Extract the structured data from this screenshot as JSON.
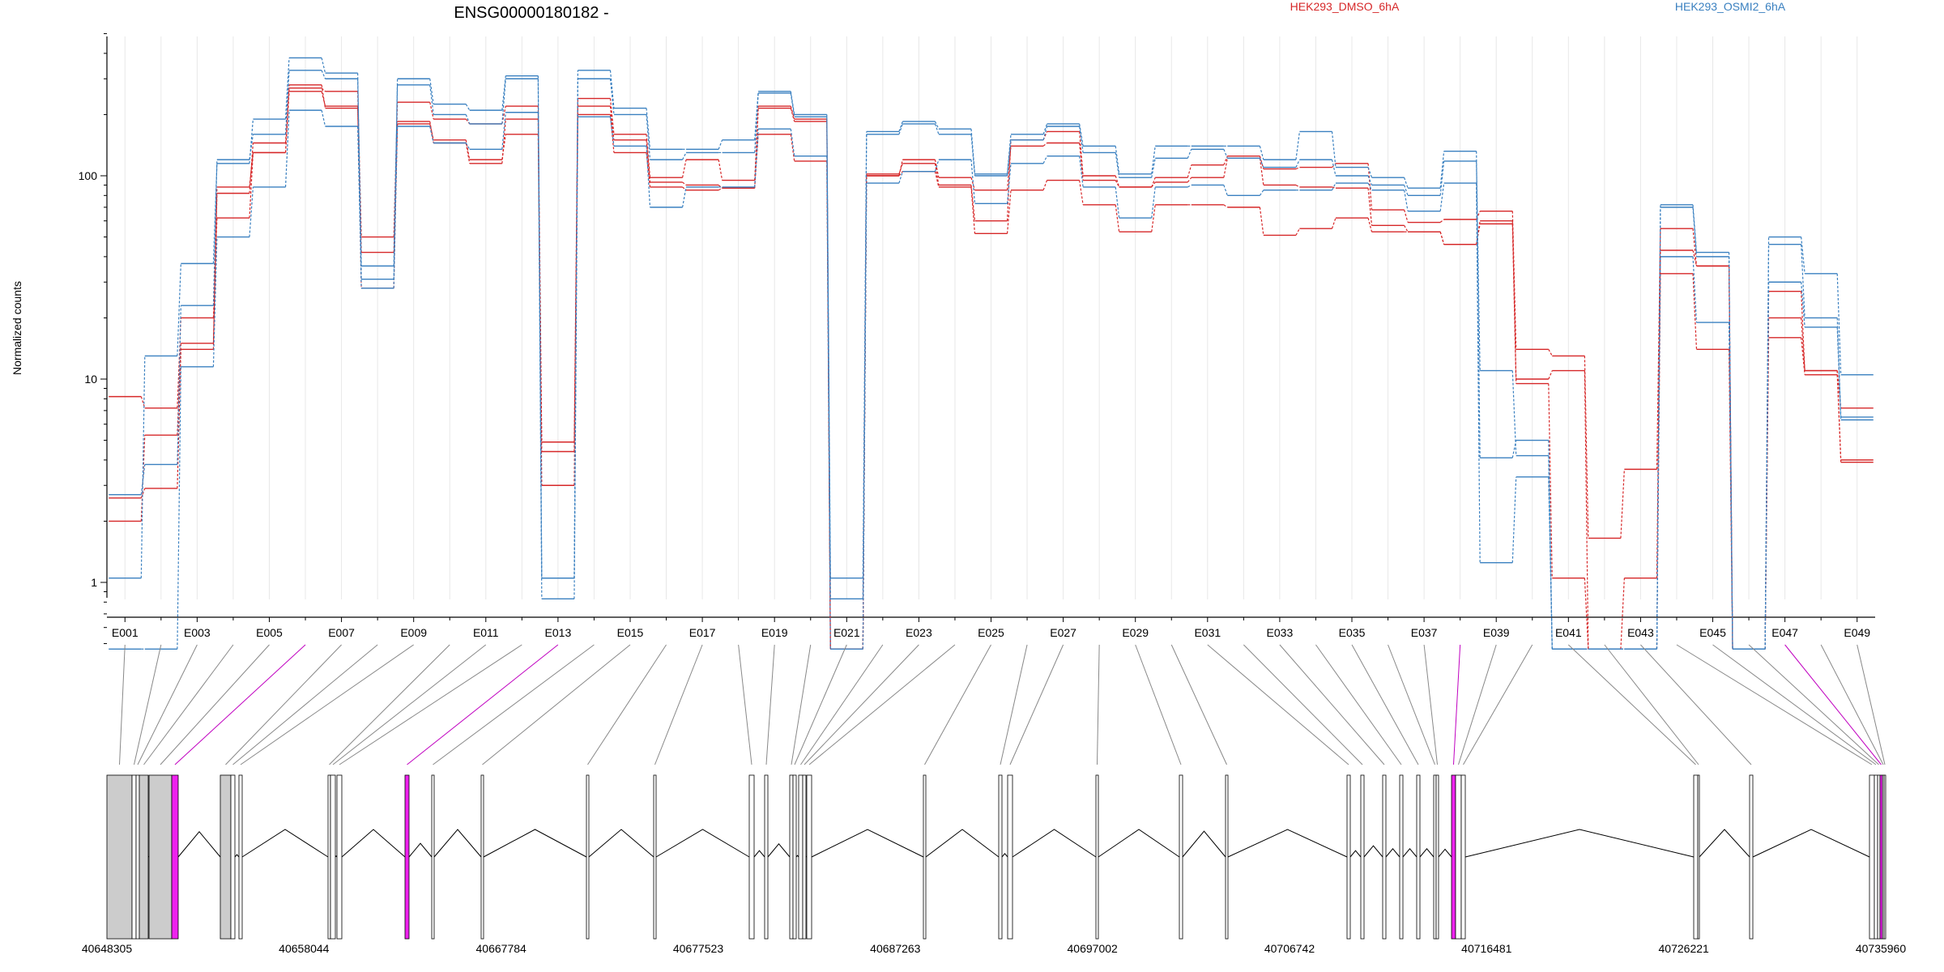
{
  "chart_data": {
    "type": "line",
    "title": "ENSG00000180182 -",
    "ylabel": "Normalized counts",
    "yscale": "log",
    "ylim": [
      0.45,
      530
    ],
    "yticks": [
      {
        "value": 1,
        "label": "1"
      },
      {
        "value": 10,
        "label": "10"
      },
      {
        "value": 100,
        "label": "100"
      }
    ],
    "grid": true,
    "legend": [
      {
        "name": "HEK293_DMSO_6hA",
        "color": "#d62728"
      },
      {
        "name": "HEK293_OSMI2_6hA",
        "color": "#3a80c0"
      }
    ],
    "exon_ids": [
      "E001",
      "E002",
      "E003",
      "E004",
      "E005",
      "E006",
      "E007",
      "E008",
      "E009",
      "E010",
      "E011",
      "E012",
      "E013",
      "E014",
      "E015",
      "E016",
      "E017",
      "E018",
      "E019",
      "E020",
      "E021",
      "E022",
      "E023",
      "E024",
      "E025",
      "E026",
      "E027",
      "E028",
      "E029",
      "E030",
      "E031",
      "E032",
      "E033",
      "E034",
      "E035",
      "E036",
      "E037",
      "E038",
      "E039",
      "E040",
      "E041",
      "E042",
      "E043",
      "E044",
      "E045",
      "E046",
      "E047",
      "E048",
      "E049"
    ],
    "exon_tick_labels": [
      "E001",
      "",
      "E003",
      "",
      "E005",
      "",
      "E007",
      "",
      "E009",
      "",
      "E011",
      "",
      "E013",
      "",
      "E015",
      "",
      "E017",
      "",
      "E019",
      "",
      "E021",
      "",
      "E023",
      "",
      "E025",
      "",
      "E027",
      "",
      "E029",
      "",
      "E031",
      "",
      "E033",
      "",
      "E035",
      "",
      "E037",
      "",
      "E039",
      "",
      "E041",
      "",
      "E043",
      "",
      "E045",
      "",
      "E047",
      "",
      "E049"
    ],
    "highlighted_exons": [
      "E006",
      "E013",
      "E038",
      "E047"
    ],
    "series": [
      {
        "group": "HEK293_DMSO_6hA",
        "color": "#d62728",
        "values": [
          8.2,
          7.2,
          20,
          62,
          130,
          270,
          260,
          50,
          230,
          190,
          180,
          220,
          4.9,
          240,
          160,
          98,
          120,
          95,
          220,
          190,
          0.47,
          102,
          115,
          90,
          60,
          150,
          165,
          100,
          88,
          98,
          113,
          125,
          108,
          110,
          115,
          68,
          59,
          61,
          67,
          14,
          13,
          1.65,
          3.6,
          55,
          36,
          0.47,
          27,
          11,
          7.2
        ]
      },
      {
        "group": "HEK293_DMSO_6hA",
        "color": "#d62728",
        "values": [
          2.0,
          5.3,
          15,
          82,
          145,
          280,
          215,
          42,
          180,
          150,
          120,
          160,
          4.4,
          220,
          150,
          93,
          90,
          87,
          215,
          185,
          0.47,
          100,
          120,
          98,
          85,
          140,
          145,
          95,
          88,
          93,
          98,
          122,
          90,
          88,
          87,
          57,
          53,
          46,
          58,
          10,
          11,
          0.47,
          1.05,
          43,
          36,
          0.47,
          16,
          10.5,
          4.0
        ]
      },
      {
        "group": "HEK293_DMSO_6hA",
        "color": "#d62728",
        "values": [
          2.6,
          2.9,
          14,
          88,
          130,
          260,
          220,
          28,
          185,
          145,
          115,
          190,
          3.0,
          200,
          130,
          88,
          85,
          87,
          160,
          118,
          0.47,
          100,
          105,
          88,
          52,
          85,
          95,
          72,
          53,
          72,
          72,
          70,
          51,
          55,
          62,
          53,
          53,
          46,
          60,
          9.5,
          1.05,
          0.47,
          0.47,
          33,
          14,
          0.47,
          20,
          11,
          3.9
        ]
      },
      {
        "group": "HEK293_OSMI2_6hA",
        "color": "#3a80c0",
        "values": [
          1.05,
          13,
          37,
          115,
          190,
          380,
          320,
          28,
          300,
          225,
          210,
          310,
          1.05,
          330,
          215,
          135,
          135,
          150,
          260,
          200,
          1.05,
          165,
          185,
          170,
          102,
          160,
          180,
          140,
          102,
          140,
          140,
          140,
          120,
          165,
          110,
          98,
          87,
          132,
          4.1,
          5.0,
          0.47,
          0.47,
          0.47,
          72,
          42,
          0.47,
          50,
          33,
          10.5
        ]
      },
      {
        "group": "HEK293_OSMI2_6hA",
        "color": "#3a80c0",
        "values": [
          2.7,
          3.8,
          23,
          120,
          160,
          330,
          300,
          36,
          280,
          200,
          180,
          300,
          1.05,
          300,
          200,
          120,
          130,
          130,
          255,
          195,
          0.83,
          160,
          180,
          160,
          100,
          150,
          175,
          130,
          98,
          122,
          135,
          122,
          110,
          120,
          100,
          90,
          80,
          118,
          11,
          4.2,
          0.47,
          0.47,
          0.47,
          70,
          40,
          0.47,
          46,
          20,
          6.5
        ]
      },
      {
        "group": "HEK293_OSMI2_6hA",
        "color": "#3a80c0",
        "values": [
          0.47,
          0.47,
          11.5,
          50,
          88,
          210,
          175,
          31,
          175,
          145,
          135,
          205,
          0.83,
          195,
          140,
          70,
          88,
          88,
          170,
          125,
          0.47,
          92,
          105,
          120,
          73,
          115,
          125,
          88,
          62,
          88,
          90,
          80,
          85,
          85,
          92,
          85,
          67,
          92,
          1.25,
          3.3,
          0.47,
          0.47,
          0.47,
          40,
          19,
          0.47,
          30,
          18,
          6.3
        ]
      }
    ],
    "gene_model": {
      "coordinate_labels": [
        "40648305",
        "40658044",
        "40667784",
        "40677523",
        "40687263",
        "40697002",
        "40706742",
        "40716481",
        "40726221",
        "40735960"
      ]
    }
  }
}
